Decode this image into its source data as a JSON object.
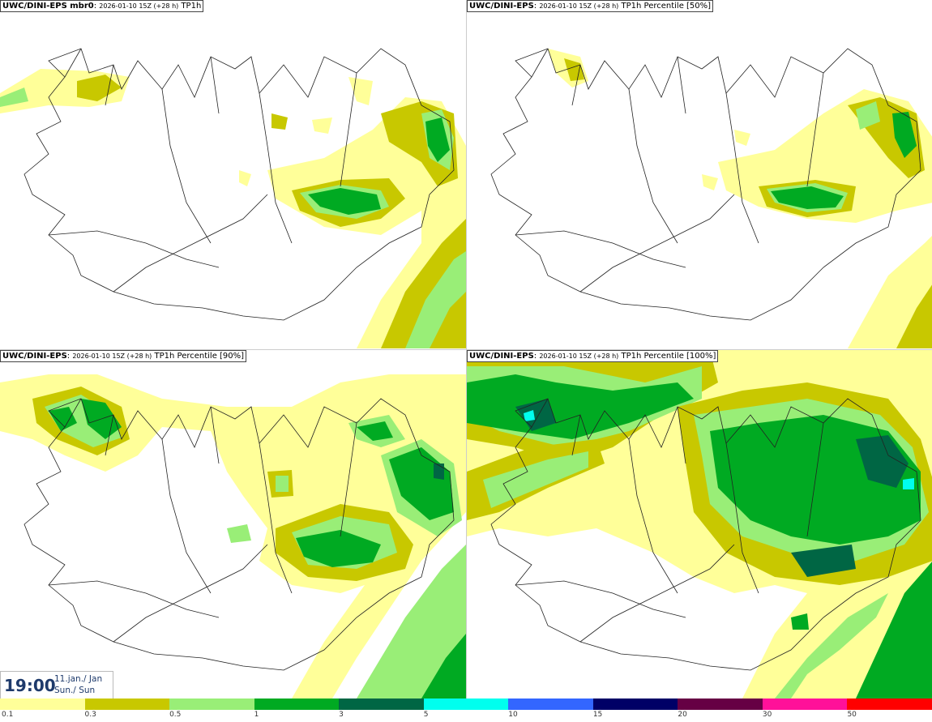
{
  "panels": [
    {
      "model": "UWC/DINI-EPS",
      "member": " mbr0",
      "run": "2026-01-10 15Z (+28 h)",
      "field": "TP1h"
    },
    {
      "model": "UWC/DINI-EPS",
      "member": "",
      "run": "2026-01-10 15Z (+28 h)",
      "field": "TP1h Percentile [50%]"
    },
    {
      "model": "UWC/DINI-EPS",
      "member": "",
      "run": "2026-01-10 15Z (+28 h)",
      "field": "TP1h Percentile [90%]"
    },
    {
      "model": "UWC/DINI-EPS",
      "member": "",
      "run": "2026-01-10 15Z (+28 h)",
      "field": "TP1h Percentile [100%]"
    }
  ],
  "valid_time": {
    "time": "19:00",
    "date_line1": "11.jan./ Jan",
    "date_line2": "Sun./ Sun"
  },
  "legend": {
    "thresholds": [
      "0.1",
      "0.3",
      "0.5",
      "1",
      "3",
      "5",
      "10",
      "15",
      "20",
      "30",
      "50"
    ],
    "colors": [
      "#ffff99",
      "#c8c800",
      "#99ee77",
      "#00aa22",
      "#006644",
      "#00ffee",
      "#3366ff",
      "#000066",
      "#660044",
      "#ff1199",
      "#ff0000"
    ]
  },
  "map_colors": {
    "yellow": "#ffff99",
    "olive": "#c8c800",
    "lightgreen": "#99ee77",
    "green": "#00aa22",
    "darkgreen": "#006644",
    "cyan": "#00ffee",
    "coast": "#222222"
  }
}
